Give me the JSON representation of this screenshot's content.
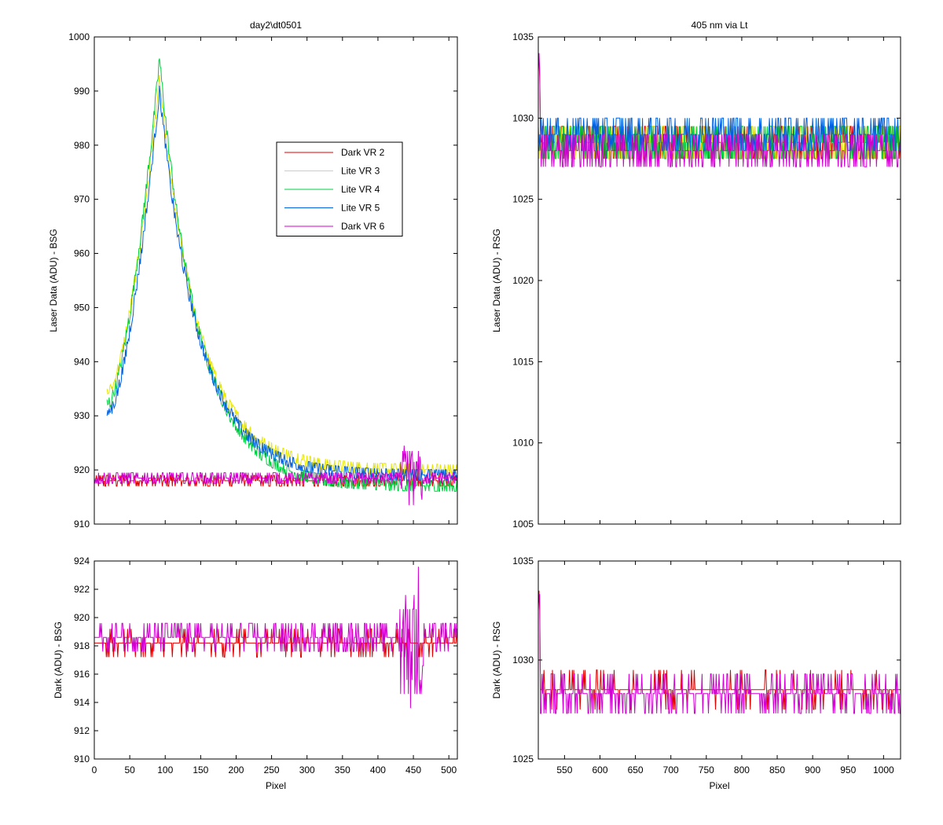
{
  "figure": {
    "background": "#ffffff"
  },
  "chart_data": [
    {
      "id": "top_left",
      "type": "line",
      "title": "day2\\dt0501",
      "xlabel": "",
      "ylabel": "Laser Data (ADU) - BSG",
      "xlim": [
        0,
        512
      ],
      "ylim": [
        910,
        1000
      ],
      "xticks": [
        0,
        50,
        100,
        150,
        200,
        250,
        300,
        350,
        400,
        450,
        500
      ],
      "yticks": [
        910,
        920,
        930,
        940,
        950,
        960,
        970,
        980,
        990,
        1000
      ],
      "show_xtick_labels": false,
      "legend": {
        "placement": "upper-middle"
      },
      "series": [
        {
          "name": "Dark VR 2",
          "color": "#e00000",
          "x_range": [
            0,
            512
          ],
          "baseline": 918,
          "shape": "flat",
          "noise": 1,
          "amp": 0
        },
        {
          "name": "Lite VR 3",
          "color": "#e6e600",
          "x_range": [
            18,
            512
          ],
          "baseline": 920,
          "shape": "peak",
          "peak_x": 92,
          "peak_y": 992,
          "start_y": 934,
          "end_y": 920,
          "noise": 1.2
        },
        {
          "name": "Lite VR 4",
          "color": "#00d040",
          "x_range": [
            18,
            512
          ],
          "baseline": 917,
          "shape": "peak",
          "peak_x": 92,
          "peak_y": 996,
          "start_y": 932,
          "end_y": 917,
          "noise": 1.5
        },
        {
          "name": "Lite VR 5",
          "color": "#0060e0",
          "x_range": [
            18,
            512
          ],
          "baseline": 916,
          "shape": "peak",
          "peak_x": 92,
          "peak_y": 990,
          "start_y": 930,
          "end_y": 919,
          "noise": 1.5
        },
        {
          "name": "Dark VR 6",
          "color": "#d000d0",
          "x_range": [
            0,
            512
          ],
          "baseline": 918.5,
          "shape": "flat",
          "noise": 1,
          "amp": 0
        }
      ]
    },
    {
      "id": "top_right",
      "type": "line",
      "title": "405 nm via Lt",
      "xlabel": "",
      "ylabel": "Laser Data (ADU) - RSG",
      "xlim": [
        513,
        1024
      ],
      "ylim": [
        1005,
        1035
      ],
      "xticks": [
        550,
        600,
        650,
        700,
        750,
        800,
        850,
        900,
        950,
        1000
      ],
      "yticks": [
        1005,
        1010,
        1015,
        1020,
        1025,
        1030,
        1035
      ],
      "show_xtick_labels": false,
      "series": [
        {
          "name": "Dark VR 2",
          "color": "#e00000",
          "x_range": [
            513,
            1024
          ],
          "baseline": 1028.5,
          "shape": "flat",
          "noise": 1
        },
        {
          "name": "Lite VR 3",
          "color": "#e6e600",
          "x_range": [
            513,
            1024
          ],
          "baseline": 1028.5,
          "shape": "flat",
          "noise": 1.2
        },
        {
          "name": "Lite VR 4",
          "color": "#00d040",
          "x_range": [
            513,
            1024
          ],
          "baseline": 1028.5,
          "shape": "flat",
          "noise": 1.2
        },
        {
          "name": "Lite VR 5",
          "color": "#0060e0",
          "x_range": [
            513,
            1024
          ],
          "baseline": 1029,
          "shape": "flat",
          "noise": 1.2
        },
        {
          "name": "Dark VR 6",
          "color": "#d000d0",
          "x_range": [
            513,
            1024
          ],
          "baseline": 1028,
          "shape": "flat",
          "noise": 1
        }
      ]
    },
    {
      "id": "bottom_left",
      "type": "line",
      "title": "",
      "xlabel": "Pixel",
      "ylabel": "Dark (ADU) - BSG",
      "xlim": [
        0,
        512
      ],
      "ylim": [
        910,
        924
      ],
      "xticks": [
        0,
        50,
        100,
        150,
        200,
        250,
        300,
        350,
        400,
        450,
        500
      ],
      "yticks": [
        910,
        912,
        914,
        916,
        918,
        920,
        922,
        924
      ],
      "show_xtick_labels": true,
      "series": [
        {
          "name": "Dark VR 2",
          "color": "#e00000",
          "x_range": [
            0,
            512
          ],
          "baseline": 918.2,
          "shape": "flat",
          "noise": 0.6
        },
        {
          "name": "Dark VR 6",
          "color": "#d000d0",
          "x_range": [
            0,
            512
          ],
          "baseline": 918.6,
          "shape": "flat",
          "noise": 0.8
        }
      ]
    },
    {
      "id": "bottom_right",
      "type": "line",
      "title": "",
      "xlabel": "Pixel",
      "ylabel": "Dark (ADU) - RSG",
      "xlim": [
        513,
        1024
      ],
      "ylim": [
        1025,
        1035
      ],
      "xticks": [
        550,
        600,
        650,
        700,
        750,
        800,
        850,
        900,
        950,
        1000
      ],
      "yticks": [
        1025,
        1030,
        1035
      ],
      "show_xtick_labels": true,
      "series": [
        {
          "name": "Dark VR 2",
          "color": "#e00000",
          "x_range": [
            513,
            1024
          ],
          "baseline": 1028.5,
          "shape": "flat",
          "noise": 0.6
        },
        {
          "name": "Dark VR 6",
          "color": "#d000d0",
          "x_range": [
            513,
            1024
          ],
          "baseline": 1028.3,
          "shape": "flat",
          "noise": 0.8
        }
      ]
    }
  ]
}
